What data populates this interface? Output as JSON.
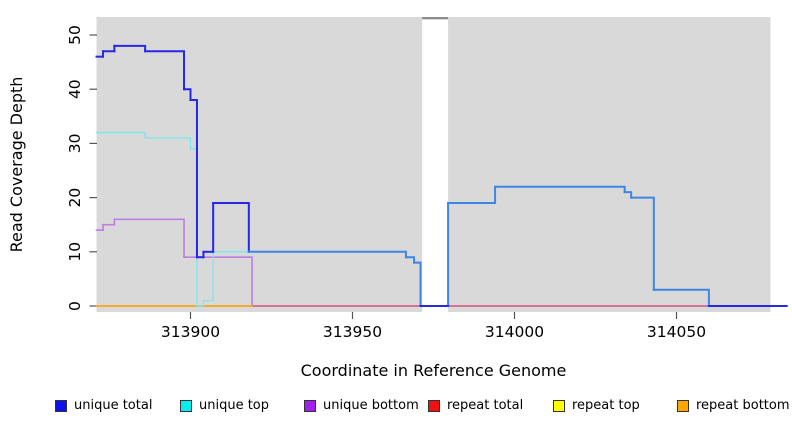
{
  "chart_data": {
    "type": "line",
    "step": true,
    "title": "",
    "xlabel": "Coordinate in Reference Genome",
    "ylabel": "Read Coverage Depth",
    "x_tick_labels": [
      "313900",
      "313950",
      "314000",
      "314050"
    ],
    "x_tick_values": [
      313900,
      313950,
      314000,
      314050
    ],
    "y_tick_labels": [
      "0",
      "10",
      "20",
      "30",
      "40",
      "50"
    ],
    "y_tick_values": [
      0,
      10,
      20,
      30,
      40,
      50
    ],
    "xlim": [
      313871,
      314084
    ],
    "ylim": [
      0,
      53
    ],
    "panel_xlim": [
      313871,
      314079
    ],
    "panel_background": "#d9d9d9",
    "grid": false,
    "legend_position": "bottom",
    "gap_region": {
      "x_start": 313971.5,
      "x_end": 313979.5,
      "top_bar_color": "#8c8c8c"
    },
    "draw_order": [
      "repeat_top",
      "unique_bottom",
      "repeat_total",
      "repeat_bottom",
      "unique_top",
      "unique_total"
    ],
    "series": [
      {
        "id": "unique_total",
        "label": "unique total",
        "legend_color": "#1010ee",
        "plot_color": "#2727e8",
        "overlap_with": "unique_top",
        "overlap_color": "#3f86e3",
        "width": 2,
        "points": [
          [
            313871,
            46
          ],
          [
            313873,
            47
          ],
          [
            313876.5,
            48
          ],
          [
            313886,
            47
          ],
          [
            313898,
            40
          ],
          [
            313900,
            38
          ],
          [
            313902,
            9
          ],
          [
            313904,
            10
          ],
          [
            313907,
            19
          ],
          [
            313918,
            10
          ],
          [
            313966.5,
            9
          ],
          [
            313969,
            8
          ],
          [
            313971,
            0
          ],
          [
            313979.5,
            19
          ],
          [
            313994,
            22
          ],
          [
            314034,
            21
          ],
          [
            314036,
            20
          ],
          [
            314043,
            3
          ],
          [
            314060,
            0
          ],
          [
            314084,
            0
          ]
        ]
      },
      {
        "id": "unique_top",
        "label": "unique top",
        "legend_color": "#00eeee",
        "plot_color": "#7be8ec",
        "width": 1.3,
        "points": [
          [
            313871,
            32
          ],
          [
            313886,
            31
          ],
          [
            313900,
            29
          ],
          [
            313902,
            0
          ],
          [
            313904,
            1
          ],
          [
            313907,
            10
          ],
          [
            313966.5,
            9
          ],
          [
            313969,
            8
          ],
          [
            313971,
            0
          ],
          [
            313979.5,
            19
          ],
          [
            313994,
            22
          ],
          [
            314034,
            21
          ],
          [
            314036,
            20
          ],
          [
            314043,
            3
          ],
          [
            314060,
            0
          ],
          [
            314078,
            0
          ]
        ]
      },
      {
        "id": "unique_bottom",
        "label": "unique bottom",
        "legend_color": "#a020f0",
        "plot_color": "#bb7ee2",
        "width": 1.6,
        "points": [
          [
            313871,
            14
          ],
          [
            313873,
            15
          ],
          [
            313876.5,
            16
          ],
          [
            313898,
            9
          ],
          [
            313919,
            0
          ],
          [
            314078,
            0
          ]
        ]
      },
      {
        "id": "repeat_total",
        "label": "repeat total",
        "legend_color": "#ee1111",
        "plot_color": "#d9536f",
        "width": 1.2,
        "points": [
          [
            313871,
            0
          ],
          [
            314078,
            0
          ]
        ]
      },
      {
        "id": "repeat_top",
        "label": "repeat top",
        "legend_color": "#ffff00",
        "plot_color": "#ffff00",
        "width": 1,
        "points": [
          [
            313871,
            0
          ],
          [
            314078,
            0
          ]
        ]
      },
      {
        "id": "repeat_bottom",
        "label": "repeat bottom",
        "legend_color": "#ffa500",
        "plot_color": "#ffa500",
        "width": 1.6,
        "points": [
          [
            313871,
            0
          ],
          [
            313919,
            0
          ]
        ]
      }
    ]
  }
}
